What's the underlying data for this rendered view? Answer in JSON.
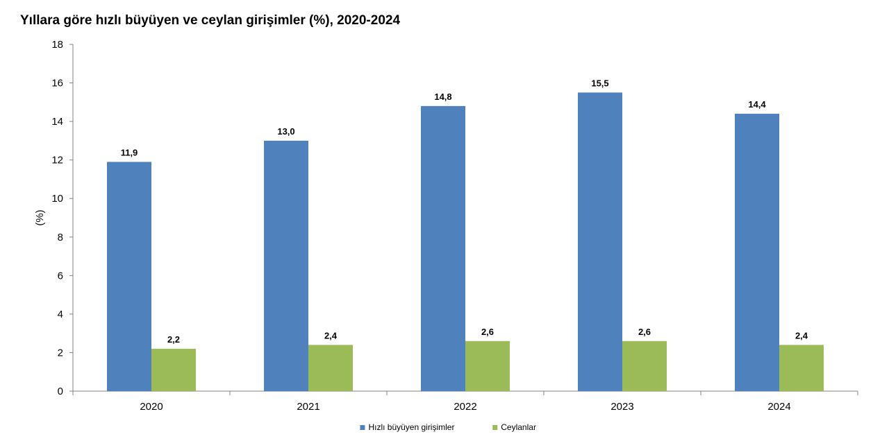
{
  "chart_data": {
    "type": "bar",
    "title": "Yıllara göre hızlı büyüyen ve ceylan girişimler (%), 2020-2024",
    "ylabel": "(%)",
    "xlabel": "",
    "ylim": [
      0,
      18
    ],
    "yticks": [
      0,
      2,
      4,
      6,
      8,
      10,
      12,
      14,
      16,
      18
    ],
    "categories": [
      "2020",
      "2021",
      "2022",
      "2023",
      "2024"
    ],
    "series": [
      {
        "name": "Hızlı büyüyen girişimler",
        "color": "#4f81bd",
        "values": [
          11.9,
          13.0,
          14.8,
          15.5,
          14.4
        ],
        "labels": [
          "11,9",
          "13,0",
          "14,8",
          "15,5",
          "14,4"
        ]
      },
      {
        "name": "Ceylanlar",
        "color": "#9bbb59",
        "values": [
          2.2,
          2.4,
          2.6,
          2.6,
          2.4
        ],
        "labels": [
          "2,2",
          "2,4",
          "2,6",
          "2,6",
          "2,4"
        ]
      }
    ],
    "grid": false,
    "legend": "bottom-center"
  }
}
